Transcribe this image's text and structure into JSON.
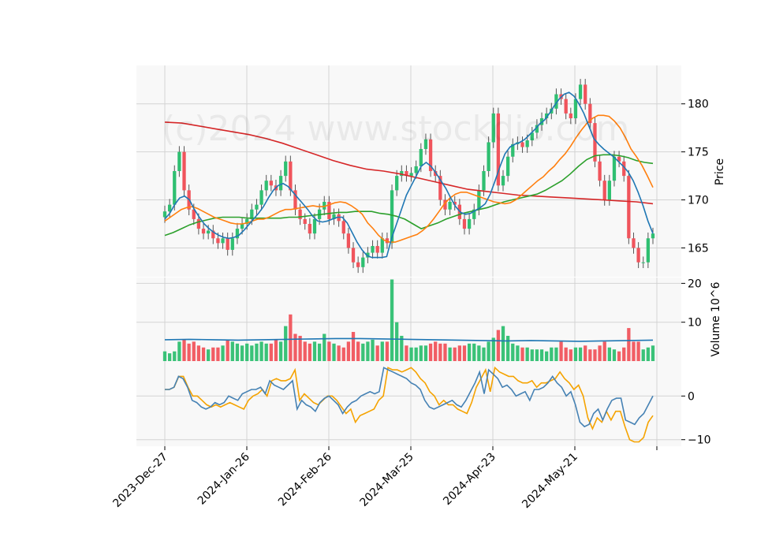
{
  "chart_data": {
    "type": "candlestick",
    "watermark": "(c)2024 www.stockdio.com",
    "x_tick_labels": [
      "2023-Dec-27",
      "2024-Jan-26",
      "2024-Feb-26",
      "2024-Mar-25",
      "2024-Apr-23",
      "2024-May-21"
    ],
    "colors": {
      "up": "#2fbf71",
      "down": "#f0545c",
      "ma_short": "#1f77b4",
      "ma_mid": "#ff7f0e",
      "ma_long": "#2ca02c",
      "ma_longest": "#d62728",
      "osc_a": "#4682b4",
      "osc_b": "#f5a300",
      "grid": "#d3d3d3",
      "panel_bg": "#f8f8f8"
    },
    "price_panel": {
      "ylabel": "Price",
      "ylim": [
        162,
        184
      ],
      "yticks": [
        165,
        170,
        175,
        180
      ],
      "close": [
        168.8,
        169.5,
        173,
        175,
        171,
        169,
        168,
        167,
        166.5,
        166.8,
        166,
        165.5,
        166,
        164.8,
        166,
        167,
        167.5,
        168,
        169,
        169.5,
        171,
        172,
        171.5,
        171,
        172.5,
        174,
        171,
        169,
        168,
        167.5,
        166.5,
        168,
        169,
        169.8,
        168,
        168.5,
        167.8,
        166.5,
        165,
        163.5,
        163,
        164,
        164.5,
        165.2,
        164.5,
        166,
        165.5,
        171,
        172.5,
        173,
        172.5,
        172.8,
        173.5,
        175.3,
        176.3,
        173,
        172.5,
        170,
        169,
        169.8,
        169.5,
        168,
        167,
        168,
        169,
        171,
        173,
        176,
        179,
        171.5,
        172.5,
        174.5,
        175.8,
        176,
        175.5,
        176.2,
        177,
        177.8,
        178.5,
        179,
        179.5,
        181,
        180.5,
        179,
        178.5,
        180.5,
        182,
        180,
        178,
        174,
        172,
        170,
        172,
        174.5,
        174,
        172.5,
        166,
        165,
        163.5,
        163.5,
        166,
        166.5
      ],
      "ma_short": [
        168,
        168.6,
        169.5,
        170.2,
        170.4,
        170,
        169,
        168.2,
        167.5,
        167,
        166.6,
        166.3,
        166.1,
        166,
        166.1,
        166.3,
        166.8,
        167.4,
        168,
        168.6,
        169.3,
        170.2,
        171,
        171.5,
        171.7,
        171.4,
        170.8,
        170.2,
        169.6,
        169,
        168.3,
        167.8,
        167.7,
        167.8,
        168,
        168.2,
        168.2,
        167.6,
        166.6,
        165.6,
        164.8,
        164.2,
        164,
        164,
        164,
        164.1,
        166,
        167.5,
        169,
        170.5,
        171.5,
        172.5,
        173.5,
        173.9,
        173.5,
        172.8,
        172,
        171.2,
        170.2,
        169.3,
        168.7,
        168.5,
        168.6,
        168.9,
        169.2,
        169.6,
        170.6,
        172,
        173.5,
        174.8,
        175.5,
        175.8,
        176,
        176.3,
        176.8,
        177.3,
        177.9,
        178.3,
        179,
        179.8,
        180.5,
        181,
        181.2,
        180.8,
        180,
        179,
        177.7,
        176.4,
        175.8,
        175.3,
        174.9,
        174.5,
        174,
        173.5,
        172.9,
        172,
        170.8,
        169.4,
        167.8,
        166.5
      ],
      "ma_mid": [
        167.8,
        168.2,
        168.6,
        169,
        169.2,
        169.3,
        169.1,
        168.8,
        168.5,
        168.2,
        168,
        167.8,
        167.6,
        167.5,
        167.5,
        167.6,
        167.8,
        168,
        168,
        168.2,
        168.5,
        168.8,
        169,
        169,
        169.1,
        169.2,
        169.3,
        169.4,
        169.3,
        169.3,
        169.5,
        169.7,
        169.8,
        169.7,
        169.4,
        169,
        168.5,
        167.6,
        167,
        166.3,
        165.8,
        165.6,
        165.6,
        165.8,
        166,
        166.2,
        166.4,
        166.8,
        167.3,
        168,
        168.8,
        169.6,
        170.2,
        170.6,
        170.8,
        170.8,
        170.6,
        170.4,
        170.2,
        170,
        169.8,
        169.7,
        169.6,
        169.7,
        170,
        170.5,
        171,
        171.5,
        172,
        172.4,
        173,
        173.5,
        174.2,
        174.8,
        175.6,
        176.5,
        177.3,
        178,
        178.5,
        178.8,
        178.8,
        178.7,
        178.2,
        177.5,
        176.5,
        175.3,
        174.5,
        173.6,
        172.5,
        171.3
      ],
      "ma_long": [
        166.3,
        166.6,
        167,
        167.4,
        167.7,
        167.9,
        168.1,
        168.2,
        168.2,
        168.2,
        168.1,
        168.1,
        168.1,
        168.1,
        168.1,
        168.2,
        168.2,
        168.3,
        168.4,
        168.5,
        168.6,
        168.7,
        168.7,
        168.8,
        168.8,
        168.8,
        168.6,
        168.5,
        168.3,
        168,
        167.5,
        167,
        167.3,
        167.6,
        168,
        168.3,
        168.6,
        168.8,
        169,
        169.2,
        169.5,
        169.8,
        170,
        170.2,
        170.4,
        170.6,
        171,
        171.5,
        172,
        172.7,
        173.5,
        174.2,
        174.6,
        174.7,
        174.7,
        174.6,
        174.4,
        174.1,
        173.9,
        173.8
      ],
      "ma_longest": [
        178.1,
        178,
        177.7,
        177.4,
        177.1,
        176.8,
        176.4,
        175.9,
        175.3,
        174.7,
        174.1,
        173.6,
        173.2,
        173,
        172.7,
        172.3,
        171.9,
        171.5,
        171.1,
        170.9,
        170.7,
        170.5,
        170.4,
        170.3,
        170.2,
        170.1,
        170,
        169.9,
        169.8,
        169.6
      ]
    },
    "volume_panel": {
      "ylabel": "Volume  10^6",
      "ylim": [
        0,
        21.5
      ],
      "yticks": [
        10,
        20
      ],
      "values": [
        2.5,
        2,
        2.5,
        5,
        5.5,
        4.5,
        5,
        4,
        3.5,
        3,
        3.5,
        3.5,
        4,
        5.5,
        5,
        4.5,
        4,
        4.5,
        4,
        4.5,
        5,
        4.5,
        4.5,
        5.5,
        5,
        9,
        12,
        7,
        6.5,
        5,
        4.5,
        5,
        4.5,
        7,
        5,
        4.5,
        4,
        3.5,
        5,
        7.5,
        5,
        4.5,
        5,
        5.5,
        4,
        5,
        5,
        21,
        10,
        6.5,
        4,
        3.5,
        3.5,
        4,
        4,
        4.5,
        5,
        4.5,
        4.5,
        3.5,
        3.5,
        4,
        4,
        4.5,
        4.5,
        4,
        3.5,
        5,
        6,
        8,
        9,
        6.5,
        4.5,
        4,
        3.5,
        3.5,
        3,
        3,
        3,
        2.5,
        3.5,
        3.5,
        5,
        3.5,
        3,
        3.5,
        3.5,
        4,
        3,
        3,
        4,
        5,
        3.5,
        3,
        2.5,
        3.5,
        8.5,
        5,
        5,
        3,
        3.5,
        4
      ],
      "ma_values": [
        5.5,
        5.6,
        5.5,
        5.4,
        5.5,
        5.6,
        5.7,
        5.8,
        5.8,
        5.7,
        5.6,
        5.5,
        5.4,
        5.3,
        5.2,
        5.3,
        5.2,
        5.1,
        5.2,
        5.3,
        5.4
      ]
    },
    "oscillator_panel": {
      "ylim": [
        -11.5,
        8
      ],
      "yticks": [
        0,
        -10
      ],
      "line_a": [
        1.5,
        1.5,
        2,
        4.5,
        4,
        2,
        -1,
        -1.5,
        -2.5,
        -3,
        -2.5,
        -1.5,
        -2,
        -1.5,
        0,
        -0.5,
        -1,
        0.5,
        1,
        1.5,
        1.5,
        2,
        0.5,
        3.5,
        2.5,
        2,
        1.5,
        2.5,
        3.5,
        -3,
        -1,
        -2,
        -2.5,
        -3.5,
        -1.5,
        -0.5,
        0,
        -1,
        -2,
        -4,
        -2.5,
        -1.5,
        -1,
        0,
        0.5,
        1,
        0.5,
        1,
        6.5,
        6,
        5.5,
        5,
        4.5,
        4,
        3,
        2.5,
        1.5,
        -1,
        -2.5,
        -3,
        -2.5,
        -2,
        -1.5,
        -1,
        -2,
        -2.5,
        -1,
        1,
        3,
        5.5,
        0.5,
        6,
        5,
        4,
        2,
        2.5,
        1.5,
        0,
        0.5,
        1,
        -1,
        1.5,
        1.5,
        2,
        3,
        4.5,
        3,
        2,
        0,
        1,
        -2,
        -6,
        -7,
        -6.5,
        -4,
        -3,
        -5.5,
        -3,
        -1,
        -0.5,
        -0.5,
        -5.5,
        -6,
        -6.5,
        -5,
        -4,
        -2,
        0
      ],
      "line_b": [
        1.5,
        1.5,
        2,
        4.5,
        4.5,
        2,
        0,
        0,
        -1,
        -2,
        -2.5,
        -2,
        -2.5,
        -2,
        -1.5,
        -2,
        -2.5,
        -3,
        -1,
        0,
        0.5,
        1.5,
        0,
        3.5,
        4,
        3.5,
        3.5,
        4,
        6,
        -1,
        0.5,
        -0.5,
        -1.5,
        -2,
        -1,
        0,
        0,
        -1,
        -2.5,
        -4,
        -3,
        -6,
        -4.5,
        -4,
        -3.5,
        -3,
        -1,
        0,
        6.5,
        6,
        6,
        5.5,
        6,
        6.5,
        5.5,
        4,
        3,
        1,
        0,
        -2,
        -1,
        -2,
        -2,
        -3,
        -3.5,
        -4,
        -1.5,
        2,
        4,
        6,
        1,
        6.5,
        5.5,
        5,
        4.5,
        4.5,
        3.5,
        3,
        3,
        3.5,
        2,
        3,
        3,
        3.5,
        4,
        5.5,
        4,
        3,
        1.5,
        2.5,
        0,
        -5,
        -7.5,
        -5,
        -6,
        -3.5,
        -5.5,
        -3.5,
        -3.5,
        -7,
        -10,
        -10.5,
        -10.5,
        -9.5,
        -6,
        -4.5
      ]
    }
  }
}
